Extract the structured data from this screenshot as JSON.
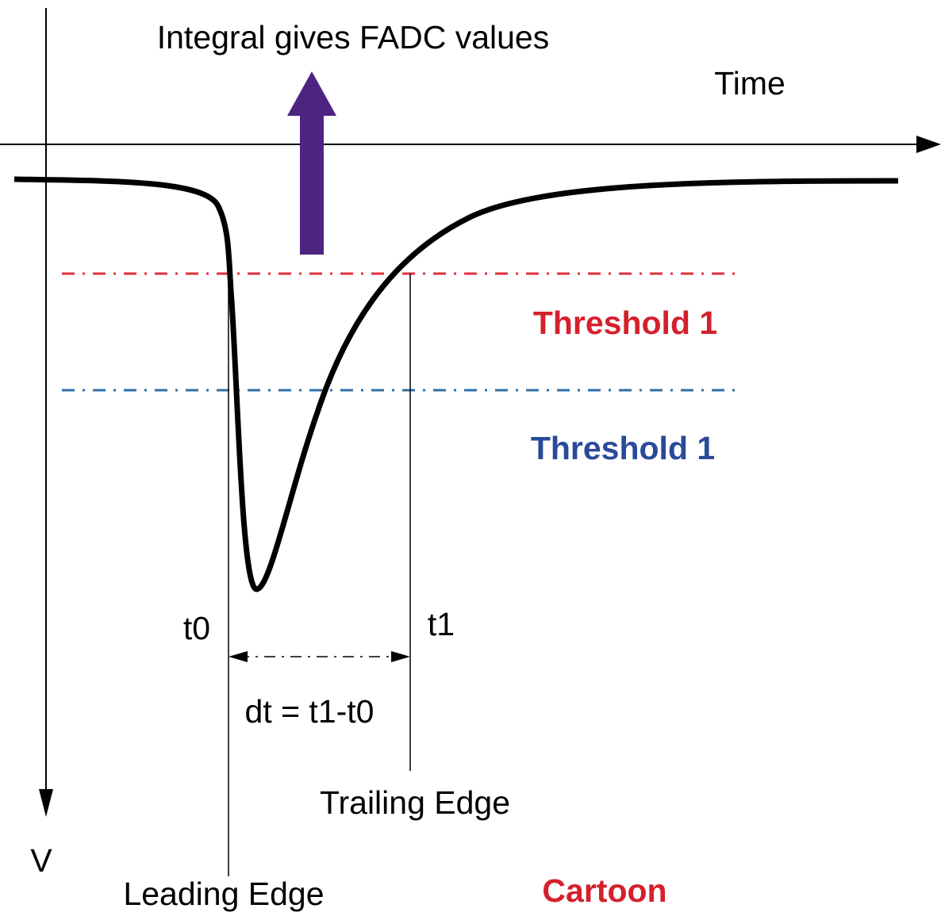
{
  "title": "Integral gives FADC values",
  "x_axis_label": "Time",
  "y_axis_label": "V",
  "threshold_red": "Threshold 1",
  "threshold_blue": "Threshold 1",
  "t0_label": "t0",
  "t1_label": "t1",
  "dt_label": "dt = t1-t0",
  "trailing_edge": "Trailing Edge",
  "leading_edge": "Leading Edge",
  "note": "Cartoon"
}
